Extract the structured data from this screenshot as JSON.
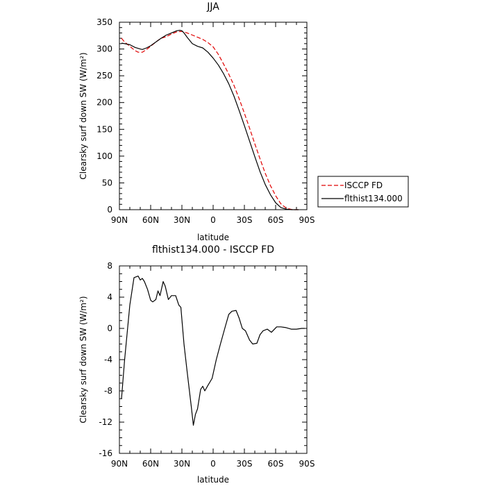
{
  "chart_data": [
    {
      "type": "line",
      "title": "JJA",
      "xlabel": "latitude",
      "ylabel": "Clearsky surf down SW (W/m²)",
      "xlim": [
        90,
        -90
      ],
      "ylim": [
        0,
        350
      ],
      "x_ticks": [
        "90N",
        "60N",
        "30N",
        "0",
        "30S",
        "60S",
        "90S"
      ],
      "y_ticks": [
        "0",
        "50",
        "100",
        "150",
        "200",
        "250",
        "300",
        "350"
      ],
      "grid": false,
      "legend_placement": "outside-right",
      "series": [
        {
          "name": "ISCCP FD",
          "color": "#e00000",
          "dash": "dashed",
          "x": [
            88,
            85,
            80,
            75,
            72,
            68,
            64,
            60,
            55,
            50,
            45,
            40,
            35,
            30,
            25,
            20,
            15,
            10,
            5,
            0,
            -5,
            -10,
            -15,
            -20,
            -25,
            -30,
            -35,
            -40,
            -45,
            -50,
            -55,
            -60,
            -65,
            -70,
            -75,
            -78,
            -80,
            -82
          ],
          "y": [
            320,
            313,
            305,
            297,
            294,
            294,
            299,
            305,
            313,
            320,
            323,
            328,
            332,
            333,
            330,
            326,
            322,
            318,
            312,
            304,
            290,
            272,
            253,
            232,
            207,
            180,
            152,
            123,
            95,
            68,
            45,
            26,
            11,
            3,
            0.5,
            0,
            0,
            0
          ]
        },
        {
          "name": "flthist134.000",
          "color": "#000000",
          "dash": "solid",
          "x": [
            88,
            85,
            80,
            75,
            70,
            68,
            64,
            60,
            55,
            50,
            45,
            40,
            35,
            32,
            30,
            28,
            25,
            20,
            15,
            10,
            5,
            0,
            -5,
            -10,
            -15,
            -20,
            -25,
            -30,
            -35,
            -40,
            -45,
            -50,
            -55,
            -60,
            -65,
            -70,
            -75,
            -78,
            -80,
            -82
          ],
          "y": [
            311,
            310,
            308,
            303,
            300,
            299,
            302,
            306,
            313,
            320,
            326,
            330,
            334,
            335,
            334,
            330,
            322,
            310,
            305,
            302,
            294,
            283,
            270,
            254,
            235,
            212,
            185,
            157,
            128,
            99,
            71,
            47,
            28,
            13,
            4,
            1,
            0,
            0,
            0,
            0
          ]
        }
      ]
    },
    {
      "type": "line",
      "title": "flthist134.000 - ISCCP FD",
      "xlabel": "latitude",
      "ylabel": "Clearsky surf down SW (W/m²)",
      "xlim": [
        90,
        -90
      ],
      "ylim": [
        -16,
        8
      ],
      "x_ticks": [
        "90N",
        "60N",
        "30N",
        "0",
        "30S",
        "60S",
        "90S"
      ],
      "y_ticks": [
        "-16",
        "-12",
        "-8",
        "-4",
        "0",
        "4",
        "8"
      ],
      "grid": false,
      "series": [
        {
          "color": "#000000",
          "dash": "solid",
          "x": [
            88,
            85,
            80,
            76,
            72,
            70,
            68,
            66,
            63,
            60,
            58,
            55,
            53,
            51,
            48,
            46,
            43,
            40,
            36,
            33,
            31,
            28,
            25,
            21,
            19,
            17,
            15,
            12,
            10,
            8,
            5,
            1,
            -3,
            -7,
            -12,
            -15,
            -18,
            -22,
            -25,
            -28,
            -31,
            -35,
            -38,
            -42,
            -45,
            -48,
            -52,
            -56,
            -61,
            -65,
            -70,
            -75,
            -80,
            -85,
            -88
          ],
          "y": [
            -9,
            -4,
            3,
            6.5,
            6.7,
            6.2,
            6.4,
            6,
            5,
            3.6,
            3.4,
            3.7,
            4.8,
            4.2,
            6,
            5.4,
            3.7,
            4.2,
            4.2,
            3,
            2.7,
            -2,
            -5.5,
            -10,
            -12.4,
            -11,
            -10.3,
            -7.8,
            -7.4,
            -8,
            -7.3,
            -6.4,
            -4,
            -2,
            0.4,
            1.8,
            2.2,
            2.3,
            1.3,
            0,
            -0.3,
            -1.5,
            -2,
            -1.9,
            -0.8,
            -0.3,
            -0.1,
            -0.5,
            0.2,
            0.2,
            0.1,
            -0.1,
            -0.1,
            0,
            0
          ]
        }
      ]
    }
  ]
}
